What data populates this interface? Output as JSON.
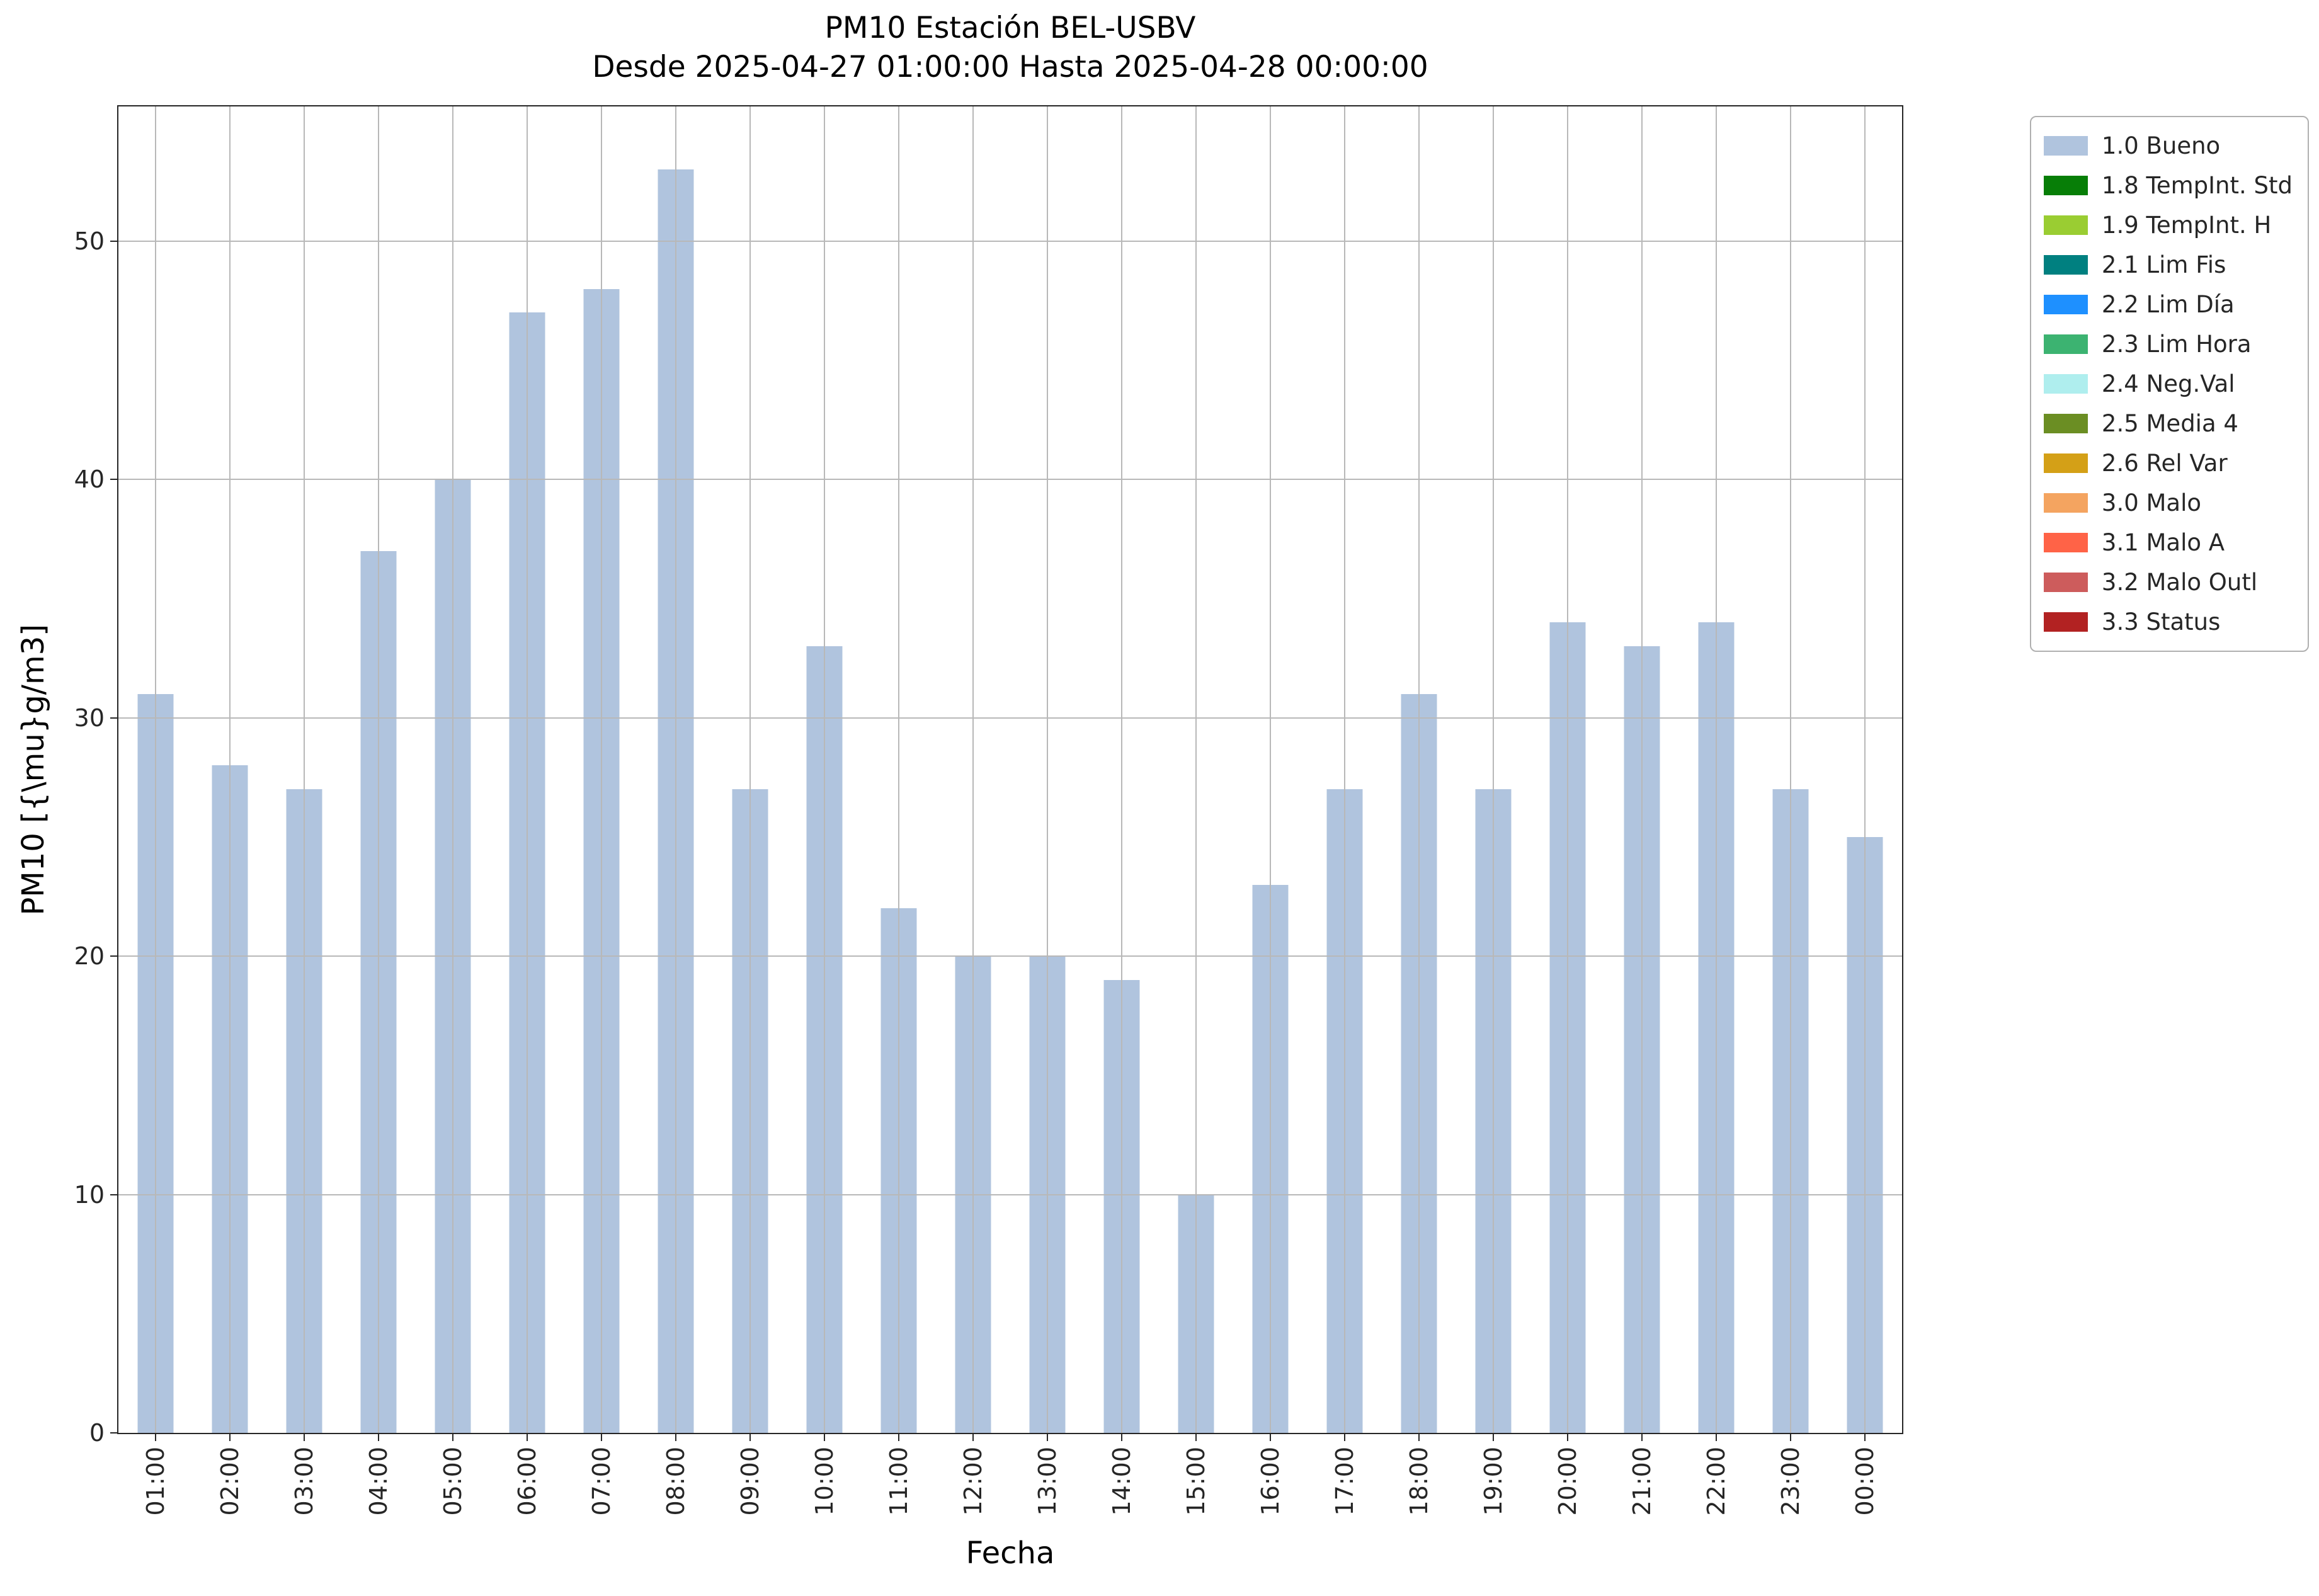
{
  "chart_data": {
    "type": "bar",
    "title": "PM10 Estación BEL-USBV",
    "subtitle": "Desde 2025-04-27 01:00:00 Hasta 2025-04-28 00:00:00",
    "xlabel": "Fecha",
    "ylabel": "PM10 [{\\mu}g/m3]",
    "categories": [
      "01:00",
      "02:00",
      "03:00",
      "04:00",
      "05:00",
      "06:00",
      "07:00",
      "08:00",
      "09:00",
      "10:00",
      "11:00",
      "12:00",
      "13:00",
      "14:00",
      "15:00",
      "16:00",
      "17:00",
      "18:00",
      "19:00",
      "20:00",
      "21:00",
      "22:00",
      "23:00",
      "00:00"
    ],
    "values": [
      31,
      28,
      27,
      37,
      40,
      47,
      48,
      53,
      27,
      33,
      22,
      20,
      20,
      19,
      10,
      23,
      27,
      31,
      27,
      34,
      33,
      34,
      27,
      25
    ],
    "ylim": [
      0,
      55.65
    ],
    "yticks": [
      0,
      10,
      20,
      30,
      40,
      50
    ],
    "grid": true,
    "bar_color": "#b0c4de",
    "grid_color": "#b8b8b8",
    "legend_position": "upper-right-outside",
    "legend": [
      {
        "label": "1.0 Bueno",
        "color": "#b0c4de"
      },
      {
        "label": "1.8 TempInt. Std",
        "color": "#077e07"
      },
      {
        "label": "1.9 TempInt. H",
        "color": "#9acd32"
      },
      {
        "label": "2.1 Lim Fis",
        "color": "#008080"
      },
      {
        "label": "2.2 Lim Día",
        "color": "#1e90ff"
      },
      {
        "label": "2.3 Lim Hora",
        "color": "#3cb371"
      },
      {
        "label": "2.4 Neg.Val",
        "color": "#afeeee"
      },
      {
        "label": "2.5 Media 4",
        "color": "#6b8e23"
      },
      {
        "label": "2.6 Rel Var",
        "color": "#d4a017"
      },
      {
        "label": "3.0 Malo",
        "color": "#f4a460"
      },
      {
        "label": "3.1 Malo A",
        "color": "#ff6347"
      },
      {
        "label": "3.2 Malo Outl",
        "color": "#cd5c5c"
      },
      {
        "label": "3.3 Status",
        "color": "#b22222"
      }
    ]
  }
}
